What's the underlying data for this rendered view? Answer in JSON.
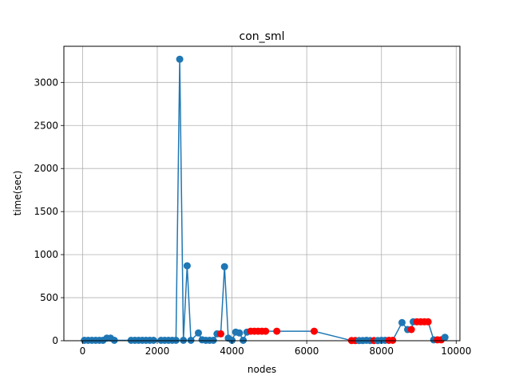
{
  "chart_data": {
    "type": "line",
    "title": "con_sml",
    "xlabel": "nodes",
    "ylabel": "time(sec)",
    "xlim": [
      -500,
      10100
    ],
    "ylim": [
      0,
      3420
    ],
    "xticks": [
      0,
      2000,
      4000,
      6000,
      8000,
      10000
    ],
    "xtick_labels": [
      "0",
      "2000",
      "4000",
      "6000",
      "8000",
      "10000"
    ],
    "yticks": [
      0,
      500,
      1000,
      1500,
      2000,
      2500,
      3000
    ],
    "ytick_labels": [
      "0",
      "500",
      "1000",
      "1500",
      "2000",
      "2500",
      "3000"
    ],
    "grid": true,
    "colors": {
      "line": "#1f77b4",
      "marker": "#1f77b4",
      "highlight": "#ff0000",
      "grid": "#b0b0b0"
    },
    "series": [
      {
        "x": [
          50,
          150,
          250,
          350,
          450,
          550,
          650,
          750,
          850,
          1300,
          1400,
          1500,
          1600,
          1700,
          1800,
          1900,
          2100,
          2200,
          2300,
          2400,
          2500,
          2600,
          2700,
          2800,
          2900,
          3100,
          3200,
          3300,
          3400,
          3500,
          3600,
          3700,
          3800,
          3900,
          4000,
          4100,
          4200,
          4300,
          4400,
          4500,
          4600,
          4700,
          4800,
          4900,
          5200,
          6200,
          7200,
          7300,
          7400,
          7500,
          7600,
          7700,
          7800,
          7900,
          8000,
          8100,
          8200,
          8300,
          8550,
          8700,
          8800,
          8850,
          8950,
          9050,
          9150,
          9250,
          9400,
          9500,
          9600,
          9700
        ],
        "y": [
          5,
          5,
          5,
          5,
          5,
          5,
          30,
          30,
          5,
          5,
          5,
          5,
          5,
          5,
          5,
          5,
          5,
          5,
          5,
          5,
          5,
          3270,
          5,
          870,
          5,
          90,
          10,
          5,
          5,
          5,
          80,
          80,
          860,
          30,
          5,
          100,
          90,
          5,
          100,
          110,
          110,
          110,
          110,
          110,
          110,
          110,
          2,
          2,
          2,
          2,
          5,
          2,
          2,
          2,
          5,
          5,
          5,
          5,
          210,
          130,
          130,
          220,
          220,
          220,
          220,
          220,
          10,
          10,
          10,
          40
        ],
        "highlighted": [
          false,
          false,
          false,
          false,
          false,
          false,
          false,
          false,
          false,
          false,
          false,
          false,
          false,
          false,
          false,
          false,
          false,
          false,
          false,
          false,
          false,
          false,
          false,
          false,
          false,
          false,
          false,
          false,
          false,
          false,
          false,
          true,
          false,
          false,
          false,
          false,
          false,
          false,
          false,
          true,
          true,
          true,
          true,
          true,
          true,
          true,
          true,
          true,
          false,
          false,
          false,
          false,
          true,
          false,
          false,
          false,
          true,
          true,
          false,
          false,
          true,
          false,
          true,
          true,
          true,
          true,
          false,
          true,
          true,
          false
        ]
      }
    ]
  }
}
